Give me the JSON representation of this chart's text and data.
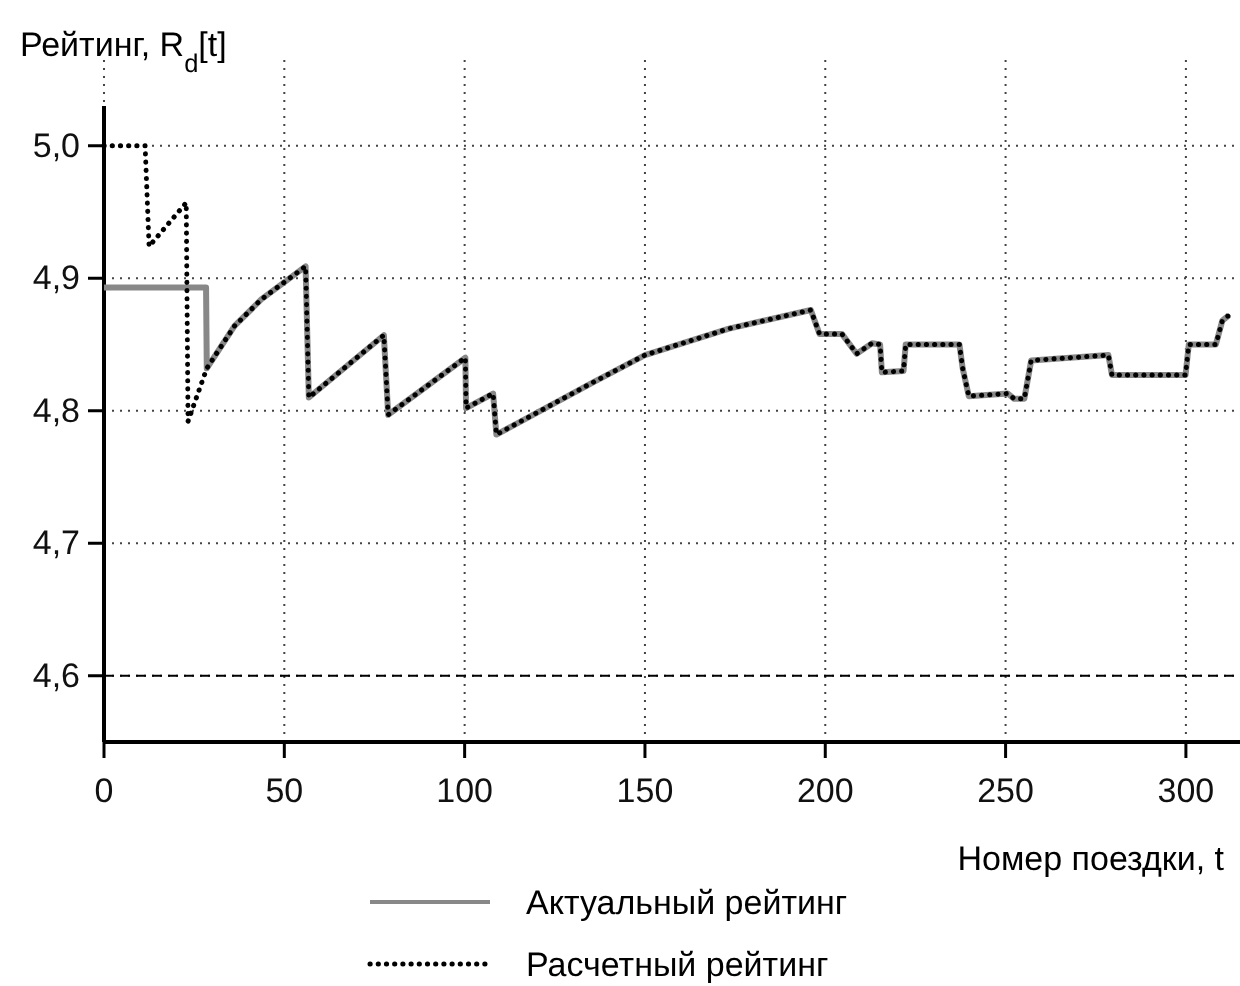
{
  "chart_data": {
    "type": "line",
    "xlabel": "Номер поездки, t",
    "ylabel": "Рейтинг, R$_{d}$[t]",
    "xlim": [
      0,
      315
    ],
    "xticks": [
      0,
      50,
      100,
      150,
      200,
      250,
      300
    ],
    "ylim": [
      4.55,
      5.03
    ],
    "yticks": [
      {
        "value": 4.6,
        "label": "4,6"
      },
      {
        "value": 4.7,
        "label": "4,7"
      },
      {
        "value": 4.8,
        "label": "4,8"
      },
      {
        "value": 4.9,
        "label": "4,9"
      },
      {
        "value": 5.0,
        "label": "5,0"
      }
    ],
    "grid": true,
    "legend": "bottom",
    "ref_lines": [
      {
        "axis": "y",
        "value": 4.6,
        "color": "#000000",
        "line_style": "dashed"
      }
    ],
    "series": [
      {
        "name": "Актуальный рейтинг",
        "color": "#888888",
        "line_style": "solid",
        "x": [
          0,
          28.3,
          28.5,
          36.2,
          43.6,
          55.9,
          56.8,
          77.6,
          78.8,
          100.2,
          100.4,
          107.9,
          108.8,
          136,
          150,
          173.3,
          196,
          198.4,
          204.6,
          208.7,
          213,
          215.2,
          215.7,
          221.7,
          222.3,
          237.2,
          238.1,
          239.8,
          250.6,
          252.4,
          255.2,
          257.1,
          278.5,
          279.5,
          299.9,
          300.8,
          308.3,
          310.1,
          311.9
        ],
        "values": [
          4.893,
          4.893,
          4.832,
          4.864,
          4.884,
          4.909,
          4.81,
          4.857,
          4.797,
          4.84,
          4.802,
          4.813,
          4.782,
          4.822,
          4.842,
          4.862,
          4.876,
          4.858,
          4.858,
          4.843,
          4.851,
          4.85,
          4.829,
          4.83,
          4.85,
          4.85,
          4.832,
          4.811,
          4.813,
          4.809,
          4.809,
          4.838,
          4.842,
          4.827,
          4.827,
          4.85,
          4.85,
          4.868,
          4.872
        ]
      },
      {
        "name": "Расчетный рейтинг",
        "color": "#000000",
        "line_style": "dotted",
        "x": [
          0,
          11.4,
          12.5,
          22.8,
          23.3,
          28.5,
          36.2,
          43.6,
          55.9,
          56.8,
          77.6,
          78.8,
          100.2,
          100.4,
          107.9,
          108.8,
          136,
          150,
          173.3,
          196,
          198.4,
          204.6,
          208.7,
          213,
          215.2,
          215.7,
          221.7,
          222.3,
          237.2,
          238.1,
          239.8,
          250.6,
          252.4,
          255.2,
          257.1,
          278.5,
          279.5,
          299.9,
          300.8,
          308.3,
          310.1,
          311.9
        ],
        "values": [
          5.0,
          5.0,
          4.924,
          4.957,
          4.792,
          4.832,
          4.864,
          4.884,
          4.909,
          4.81,
          4.857,
          4.797,
          4.84,
          4.802,
          4.813,
          4.782,
          4.822,
          4.842,
          4.862,
          4.876,
          4.858,
          4.858,
          4.843,
          4.851,
          4.85,
          4.829,
          4.83,
          4.85,
          4.85,
          4.832,
          4.811,
          4.813,
          4.809,
          4.809,
          4.838,
          4.842,
          4.827,
          4.827,
          4.85,
          4.85,
          4.868,
          4.872
        ]
      }
    ]
  }
}
